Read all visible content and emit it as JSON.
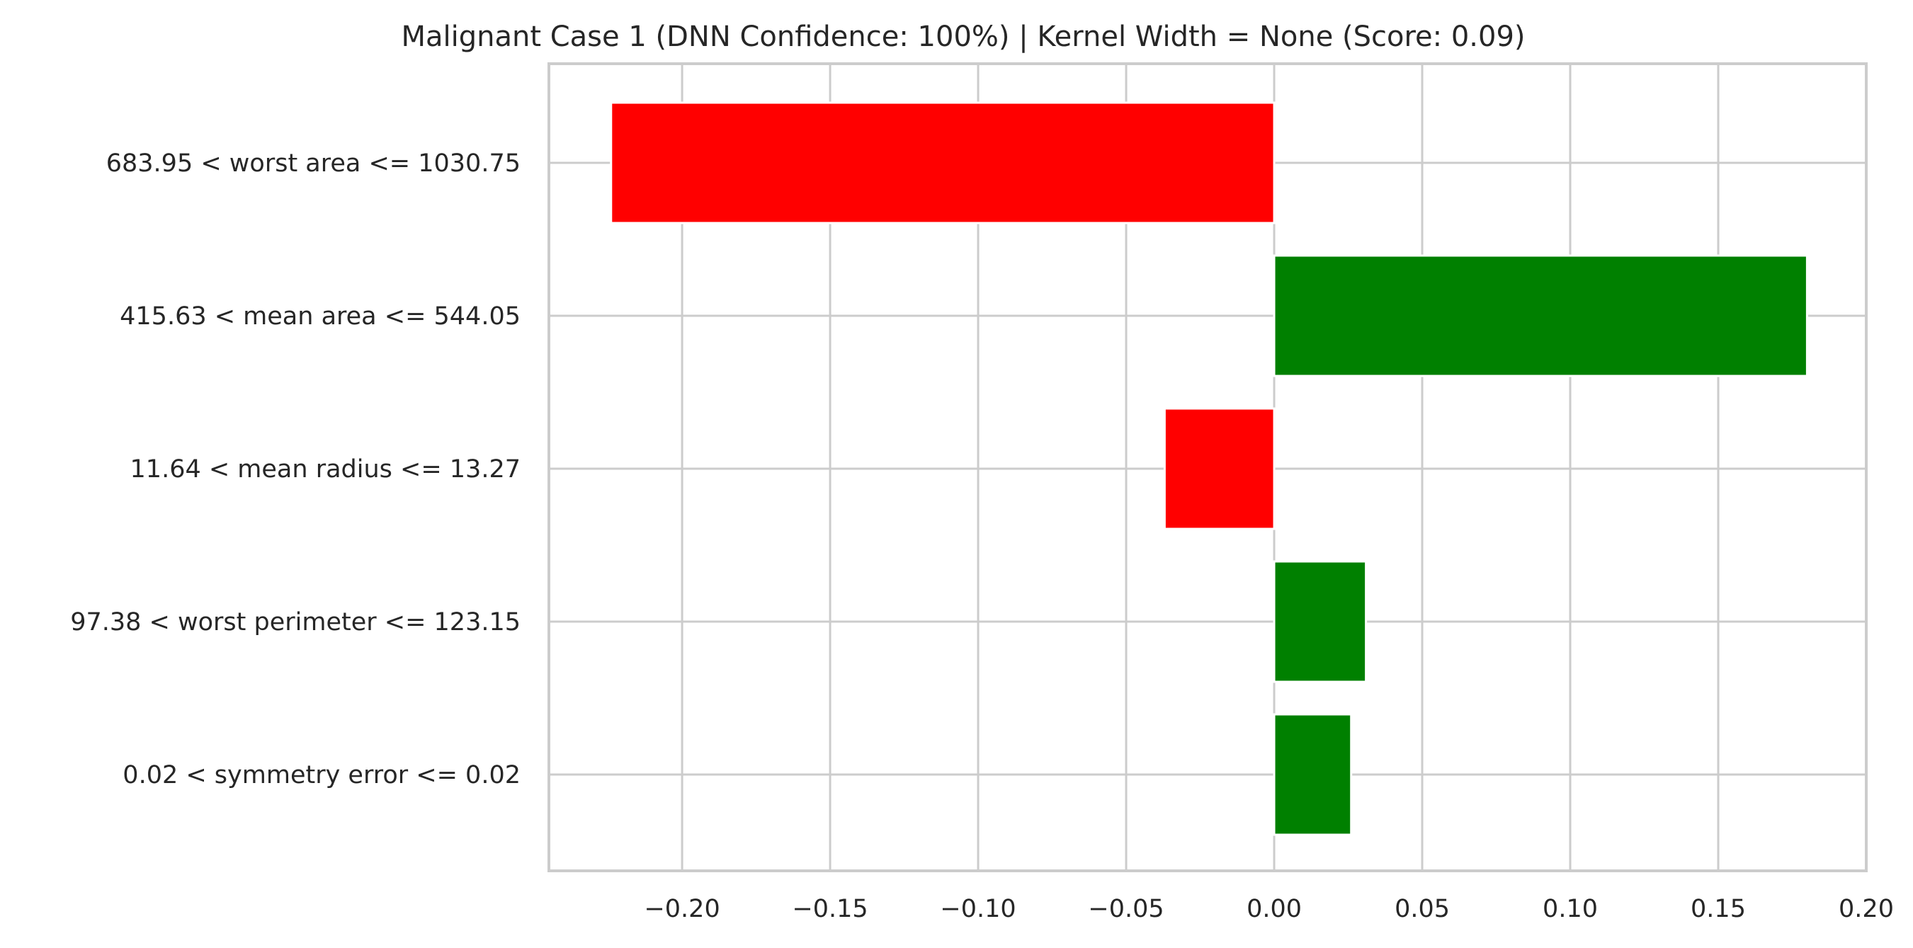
{
  "chart_data": {
    "type": "bar",
    "orientation": "horizontal",
    "title": "Malignant Case 1 (DNN Confidence: 100%) | Kernel Width = None (Score: 0.09)",
    "xlabel": "",
    "ylabel": "",
    "xlim": [
      -0.245,
      0.2
    ],
    "x_ticks": [
      -0.2,
      -0.15,
      -0.1,
      -0.05,
      0.0,
      0.05,
      0.1,
      0.15,
      0.2
    ],
    "x_tick_labels": [
      "−0.20",
      "−0.15",
      "−0.10",
      "−0.05",
      "0.00",
      "0.05",
      "0.10",
      "0.15",
      "0.20"
    ],
    "grid": true,
    "legend": "none",
    "categories": [
      "683.95 < worst area <= 1030.75",
      "415.63 < mean area <= 544.05",
      "11.64 < mean radius <= 13.27",
      "97.38 < worst perimeter <= 123.15",
      "0.02 < symmetry error <= 0.02"
    ],
    "values": [
      -0.224,
      0.18,
      -0.037,
      0.031,
      0.026
    ],
    "colors": {
      "negative": "#ff0000",
      "positive": "#008000"
    }
  }
}
